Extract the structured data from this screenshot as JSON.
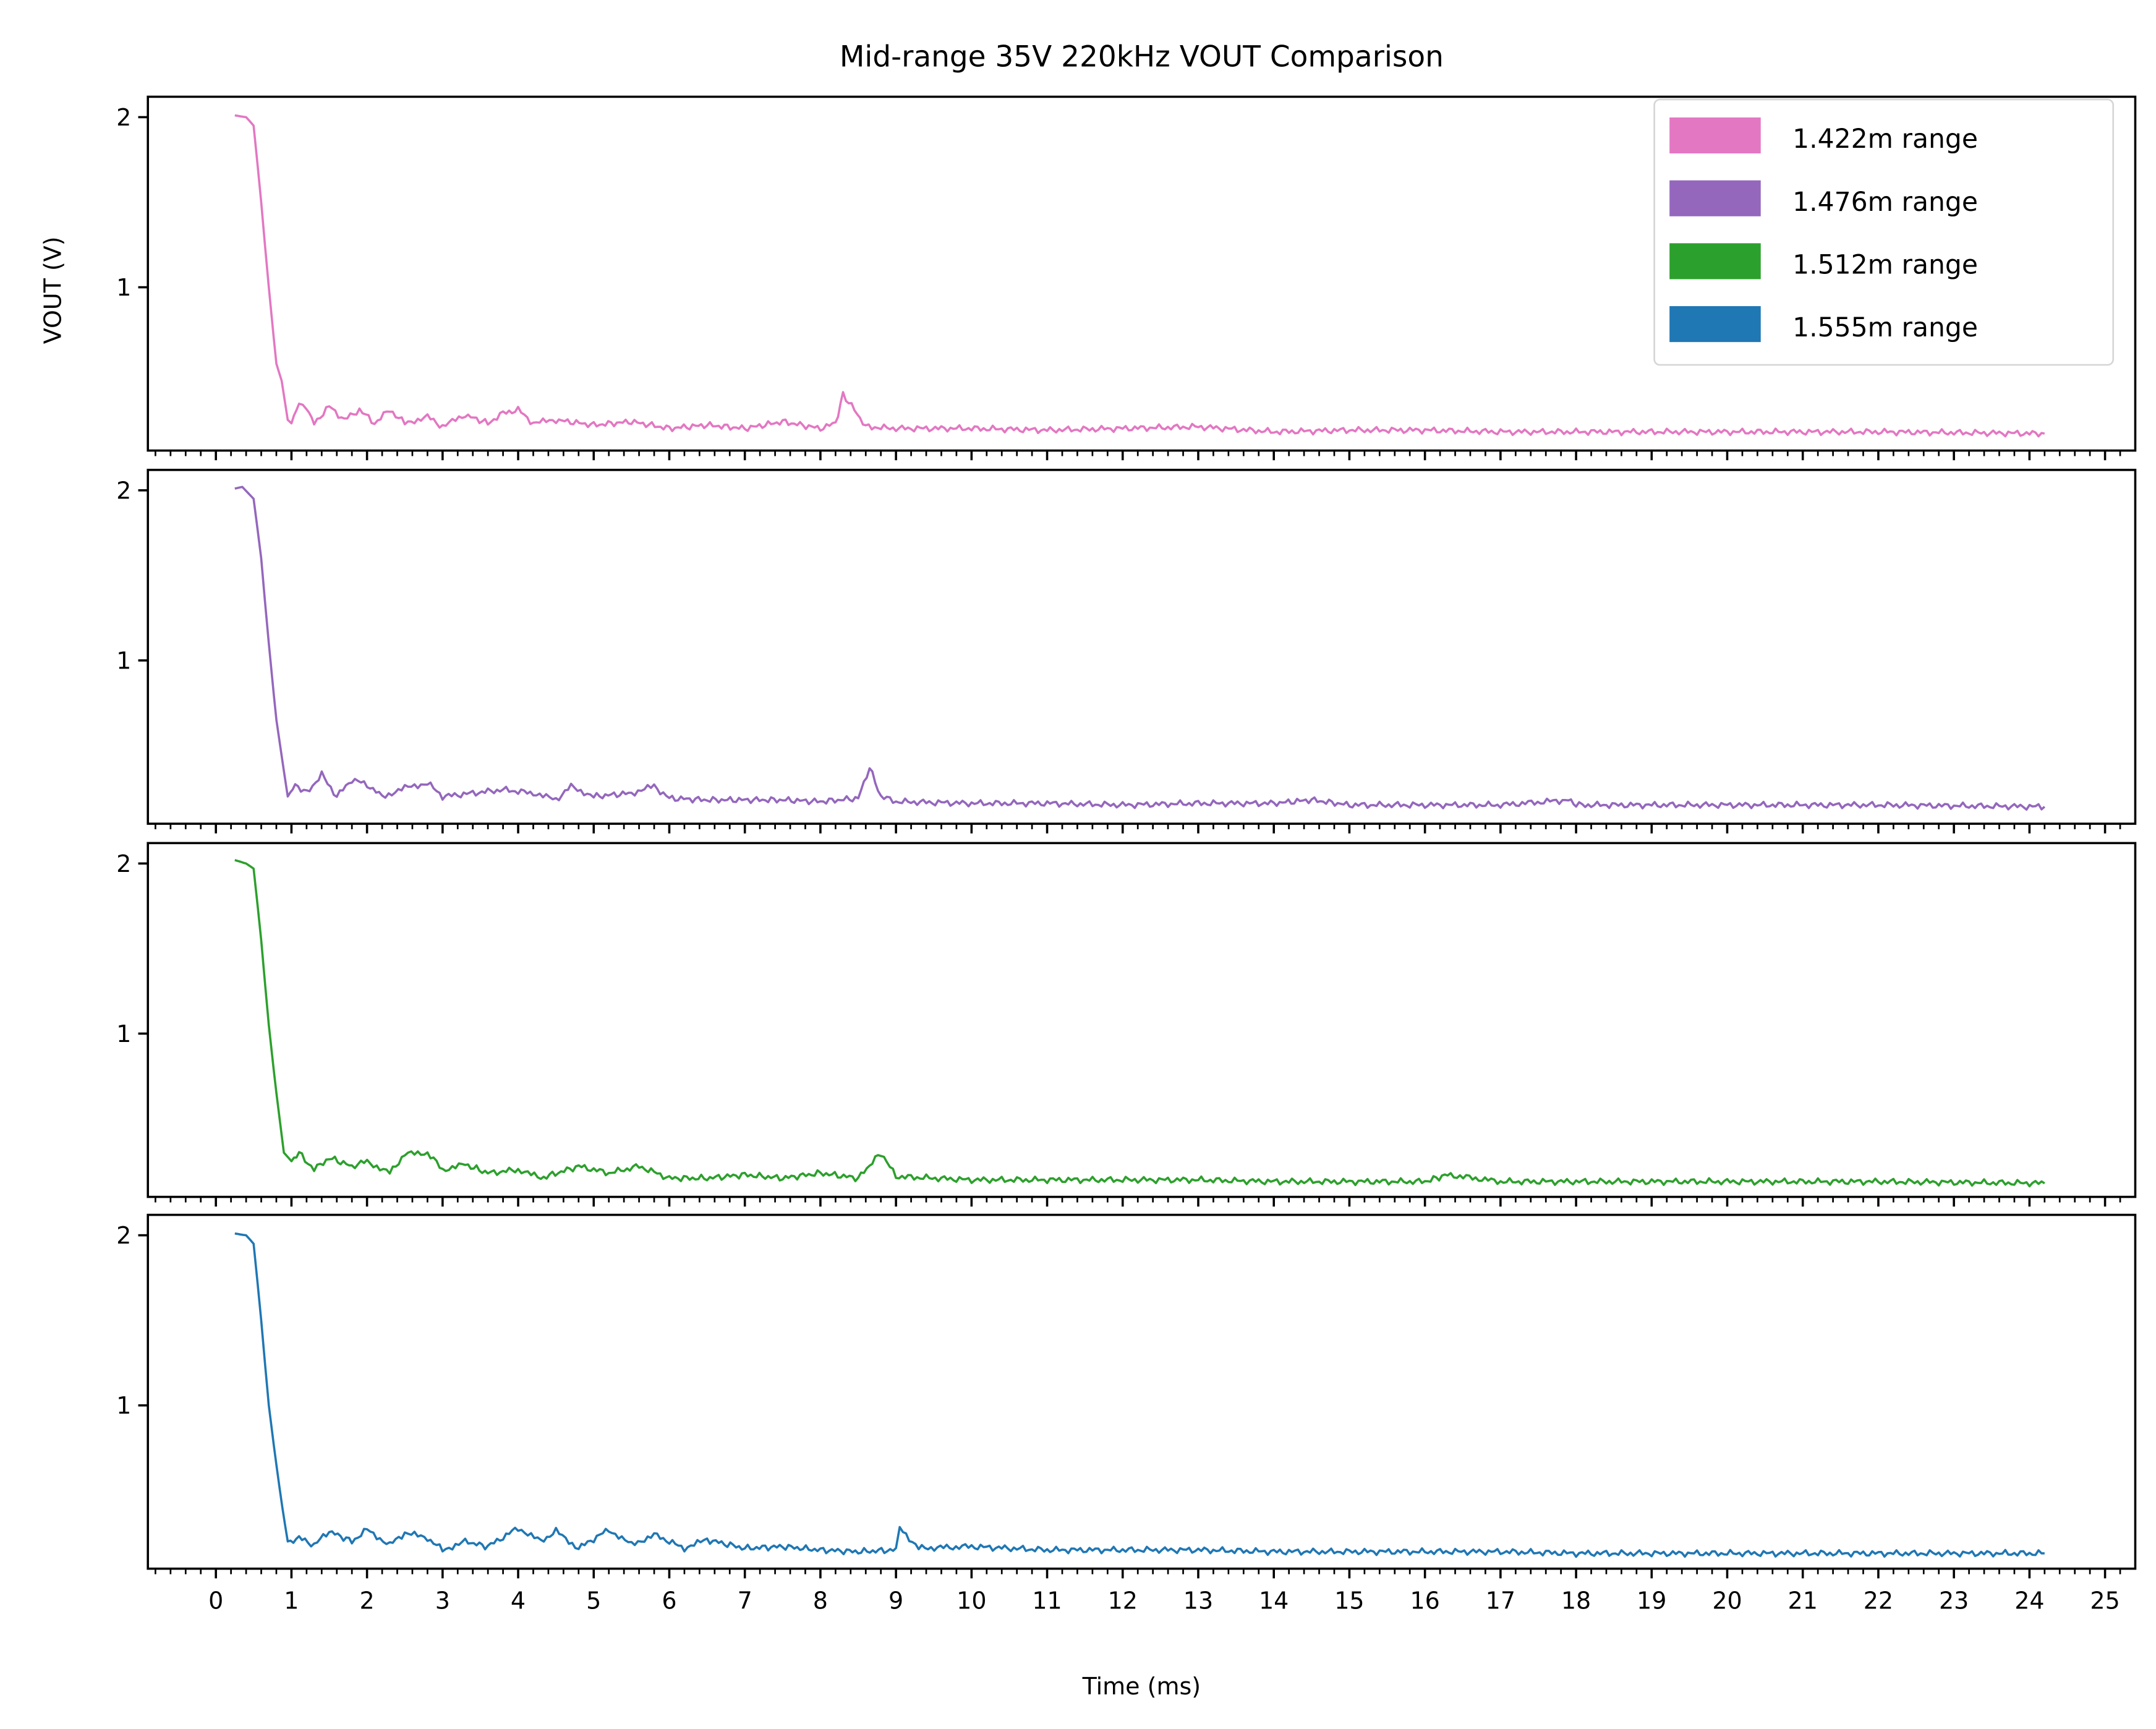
{
  "chart_data": {
    "type": "line",
    "title": "Mid-range 35V 220kHz VOUT Comparison",
    "xlabel": "Time (ms)",
    "ylabel": "VOUT (V)",
    "xlim": [
      -0.9,
      25.4
    ],
    "ylim": [
      0.04,
      2.12
    ],
    "xticks": [
      "0",
      "1",
      "2",
      "3",
      "4",
      "5",
      "6",
      "7",
      "8",
      "9",
      "10",
      "11",
      "12",
      "13",
      "14",
      "15",
      "16",
      "17",
      "18",
      "19",
      "20",
      "21",
      "22",
      "23",
      "24",
      "25"
    ],
    "yticks": [
      "1",
      "2"
    ],
    "grid": false,
    "legend_position": "top-right",
    "series": [
      {
        "name": "1.422m range",
        "color": "#e377c2",
        "points": [
          [
            0.25,
            2.01
          ],
          [
            0.4,
            2.0
          ],
          [
            0.5,
            1.95
          ],
          [
            0.6,
            1.5
          ],
          [
            0.7,
            1.0
          ],
          [
            0.8,
            0.55
          ],
          [
            0.87,
            0.45
          ],
          [
            0.95,
            0.22
          ],
          [
            1.0,
            0.2
          ],
          [
            1.1,
            0.32
          ],
          [
            1.2,
            0.29
          ],
          [
            1.3,
            0.2
          ],
          [
            1.5,
            0.3
          ],
          [
            1.7,
            0.22
          ],
          [
            1.9,
            0.28
          ],
          [
            2.1,
            0.2
          ],
          [
            2.3,
            0.28
          ],
          [
            2.5,
            0.2
          ],
          [
            2.8,
            0.24
          ],
          [
            3.0,
            0.18
          ],
          [
            3.3,
            0.25
          ],
          [
            3.6,
            0.2
          ],
          [
            3.8,
            0.26
          ],
          [
            4.0,
            0.28
          ],
          [
            4.2,
            0.2
          ],
          [
            4.5,
            0.22
          ],
          [
            5.0,
            0.19
          ],
          [
            5.5,
            0.21
          ],
          [
            6.0,
            0.17
          ],
          [
            6.5,
            0.19
          ],
          [
            7.0,
            0.17
          ],
          [
            7.5,
            0.21
          ],
          [
            8.0,
            0.17
          ],
          [
            8.2,
            0.2
          ],
          [
            8.3,
            0.37
          ],
          [
            8.45,
            0.28
          ],
          [
            8.6,
            0.18
          ],
          [
            9,
            0.17
          ],
          [
            10,
            0.17
          ],
          [
            11,
            0.16
          ],
          [
            12,
            0.17
          ],
          [
            13,
            0.18
          ],
          [
            14,
            0.15
          ],
          [
            15,
            0.16
          ],
          [
            16,
            0.16
          ],
          [
            17,
            0.15
          ],
          [
            18,
            0.15
          ],
          [
            20,
            0.15
          ],
          [
            22,
            0.15
          ],
          [
            24.2,
            0.14
          ]
        ]
      },
      {
        "name": "1.476m range",
        "color": "#9467bd",
        "points": [
          [
            0.25,
            2.01
          ],
          [
            0.35,
            2.02
          ],
          [
            0.5,
            1.95
          ],
          [
            0.6,
            1.6
          ],
          [
            0.7,
            1.1
          ],
          [
            0.8,
            0.65
          ],
          [
            0.9,
            0.35
          ],
          [
            0.95,
            0.2
          ],
          [
            1.05,
            0.27
          ],
          [
            1.2,
            0.22
          ],
          [
            1.4,
            0.33
          ],
          [
            1.6,
            0.2
          ],
          [
            1.8,
            0.3
          ],
          [
            2.0,
            0.27
          ],
          [
            2.2,
            0.2
          ],
          [
            2.5,
            0.25
          ],
          [
            2.8,
            0.28
          ],
          [
            3.0,
            0.2
          ],
          [
            3.4,
            0.22
          ],
          [
            3.8,
            0.24
          ],
          [
            4.2,
            0.22
          ],
          [
            4.5,
            0.18
          ],
          [
            4.7,
            0.26
          ],
          [
            5.0,
            0.2
          ],
          [
            5.5,
            0.22
          ],
          [
            5.8,
            0.26
          ],
          [
            6.0,
            0.19
          ],
          [
            6.5,
            0.18
          ],
          [
            7.0,
            0.18
          ],
          [
            7.5,
            0.18
          ],
          [
            8.0,
            0.17
          ],
          [
            8.5,
            0.19
          ],
          [
            8.65,
            0.37
          ],
          [
            8.8,
            0.2
          ],
          [
            9,
            0.17
          ],
          [
            10,
            0.16
          ],
          [
            11,
            0.16
          ],
          [
            12,
            0.15
          ],
          [
            13,
            0.16
          ],
          [
            14,
            0.16
          ],
          [
            14.5,
            0.18
          ],
          [
            15,
            0.15
          ],
          [
            16,
            0.15
          ],
          [
            17,
            0.15
          ],
          [
            17.9,
            0.18
          ],
          [
            18,
            0.15
          ],
          [
            20,
            0.15
          ],
          [
            22,
            0.15
          ],
          [
            24.2,
            0.14
          ]
        ]
      },
      {
        "name": "1.512m range",
        "color": "#2ca02c",
        "points": [
          [
            0.25,
            2.02
          ],
          [
            0.4,
            2.0
          ],
          [
            0.5,
            1.97
          ],
          [
            0.6,
            1.55
          ],
          [
            0.7,
            1.05
          ],
          [
            0.8,
            0.65
          ],
          [
            0.9,
            0.3
          ],
          [
            1.0,
            0.25
          ],
          [
            1.1,
            0.3
          ],
          [
            1.3,
            0.2
          ],
          [
            1.5,
            0.27
          ],
          [
            1.8,
            0.22
          ],
          [
            2.0,
            0.25
          ],
          [
            2.3,
            0.18
          ],
          [
            2.5,
            0.29
          ],
          [
            2.8,
            0.3
          ],
          [
            3.0,
            0.2
          ],
          [
            3.3,
            0.23
          ],
          [
            3.6,
            0.18
          ],
          [
            4.0,
            0.2
          ],
          [
            4.3,
            0.15
          ],
          [
            4.8,
            0.22
          ],
          [
            5.2,
            0.18
          ],
          [
            5.6,
            0.22
          ],
          [
            6.0,
            0.15
          ],
          [
            6.5,
            0.15
          ],
          [
            7.0,
            0.17
          ],
          [
            7.5,
            0.15
          ],
          [
            8.0,
            0.18
          ],
          [
            8.5,
            0.15
          ],
          [
            8.8,
            0.3
          ],
          [
            9.0,
            0.16
          ],
          [
            10,
            0.14
          ],
          [
            11,
            0.14
          ],
          [
            12,
            0.14
          ],
          [
            13,
            0.14
          ],
          [
            14,
            0.13
          ],
          [
            15,
            0.13
          ],
          [
            16,
            0.13
          ],
          [
            16.3,
            0.17
          ],
          [
            17,
            0.13
          ],
          [
            18,
            0.13
          ],
          [
            20,
            0.13
          ],
          [
            22,
            0.13
          ],
          [
            24.2,
            0.12
          ]
        ]
      },
      {
        "name": "1.555m range",
        "color": "#1f77b4",
        "points": [
          [
            0.25,
            2.01
          ],
          [
            0.4,
            2.0
          ],
          [
            0.5,
            1.95
          ],
          [
            0.6,
            1.5
          ],
          [
            0.7,
            1.0
          ],
          [
            0.8,
            0.65
          ],
          [
            0.88,
            0.4
          ],
          [
            0.95,
            0.2
          ],
          [
            1.1,
            0.22
          ],
          [
            1.3,
            0.18
          ],
          [
            1.5,
            0.26
          ],
          [
            1.8,
            0.2
          ],
          [
            2.0,
            0.27
          ],
          [
            2.3,
            0.18
          ],
          [
            2.5,
            0.25
          ],
          [
            2.8,
            0.22
          ],
          [
            3.0,
            0.15
          ],
          [
            3.3,
            0.2
          ],
          [
            3.6,
            0.17
          ],
          [
            4.0,
            0.28
          ],
          [
            4.3,
            0.2
          ],
          [
            4.5,
            0.26
          ],
          [
            4.8,
            0.16
          ],
          [
            5.2,
            0.27
          ],
          [
            5.5,
            0.18
          ],
          [
            5.8,
            0.24
          ],
          [
            6.2,
            0.16
          ],
          [
            6.5,
            0.21
          ],
          [
            7.0,
            0.16
          ],
          [
            7.5,
            0.17
          ],
          [
            8.0,
            0.15
          ],
          [
            8.5,
            0.14
          ],
          [
            9.0,
            0.15
          ],
          [
            9.05,
            0.28
          ],
          [
            9.3,
            0.16
          ],
          [
            10,
            0.17
          ],
          [
            11,
            0.15
          ],
          [
            12,
            0.15
          ],
          [
            13,
            0.15
          ],
          [
            14,
            0.14
          ],
          [
            15,
            0.14
          ],
          [
            16,
            0.14
          ],
          [
            17,
            0.14
          ],
          [
            18,
            0.13
          ],
          [
            20,
            0.13
          ],
          [
            22,
            0.13
          ],
          [
            24.2,
            0.13
          ]
        ]
      }
    ]
  }
}
